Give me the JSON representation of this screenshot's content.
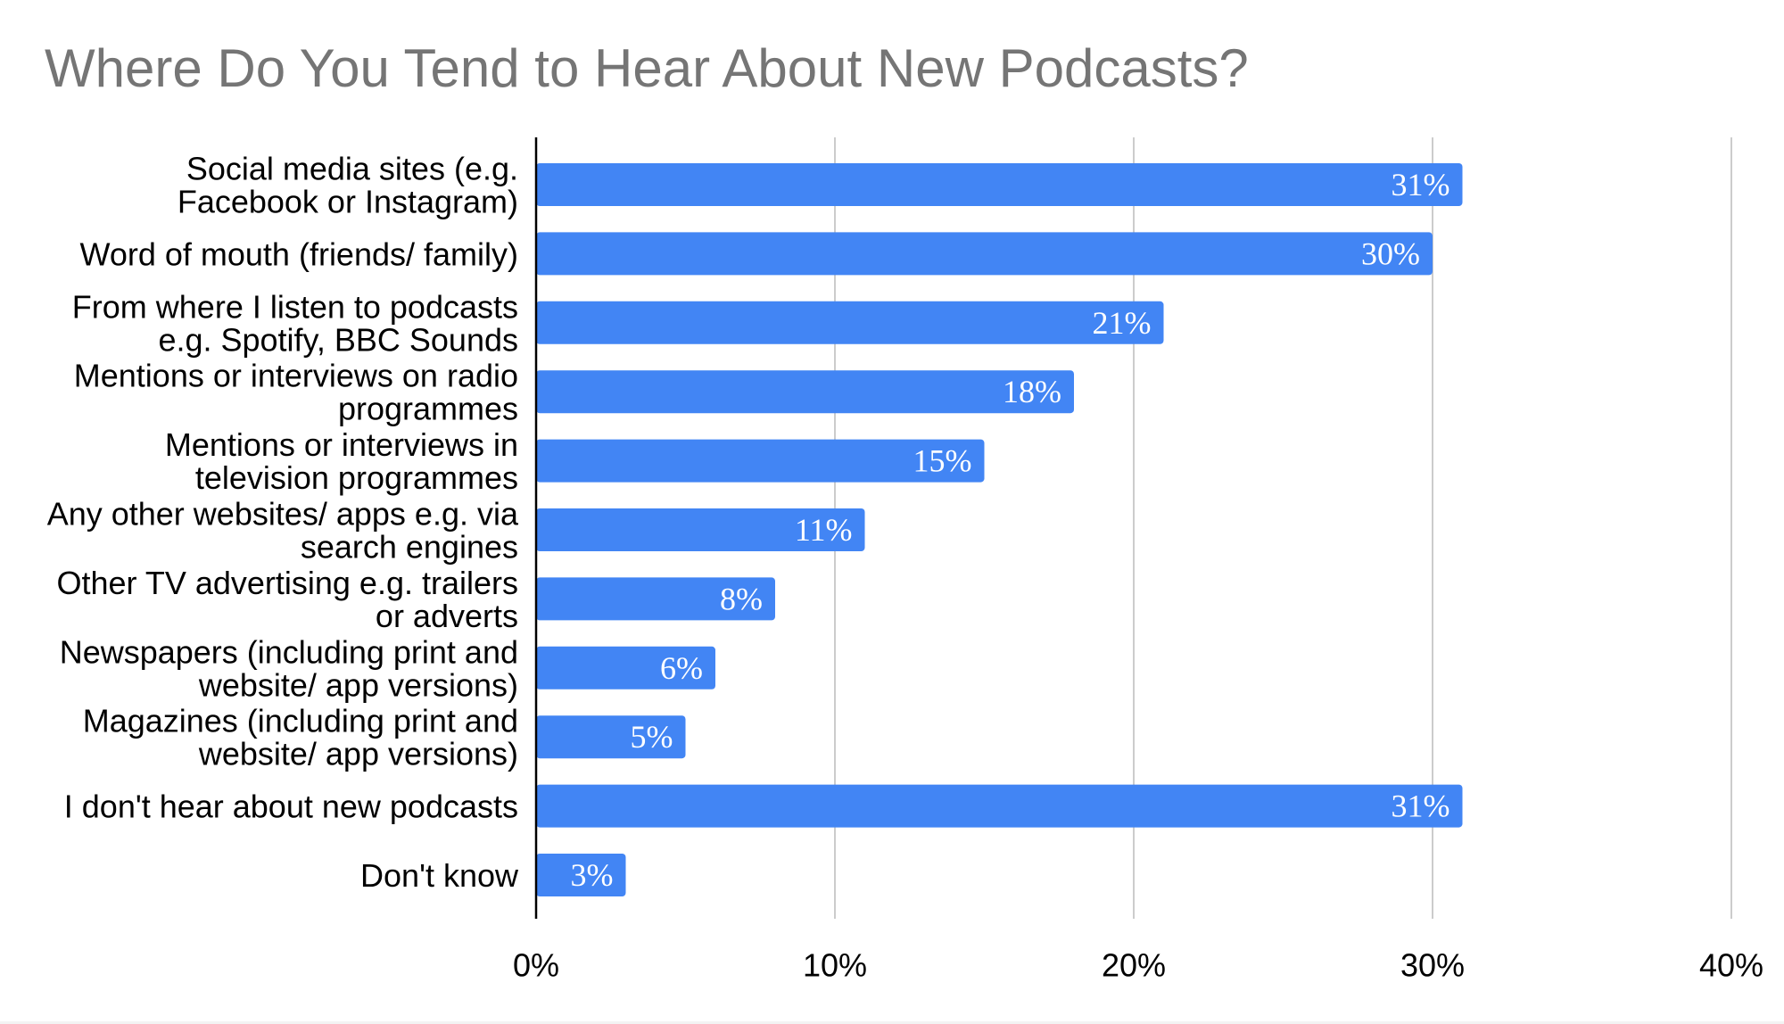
{
  "chart_data": {
    "type": "bar",
    "orientation": "horizontal",
    "title": "Where Do You Tend to Hear About New Podcasts?",
    "categories": [
      "Social media sites (e.g.\nFacebook or Instagram)",
      "Word of mouth (friends/ family)",
      "From where I listen to podcasts\ne.g. Spotify, BBC Sounds",
      "Mentions or interviews on radio\nprogrammes",
      "Mentions or interviews in\ntelevision programmes",
      "Any other websites/ apps e.g. via\nsearch engines",
      "Other TV advertising e.g. trailers\nor adverts",
      "Newspapers (including print and\nwebsite/ app versions)",
      "Magazines (including print and\nwebsite/ app versions)",
      "I don't hear about new podcasts",
      "Don't know"
    ],
    "values": [
      31,
      30,
      21,
      18,
      15,
      11,
      8,
      6,
      5,
      31,
      3
    ],
    "data_labels": [
      "31%",
      "30%",
      "21%",
      "18%",
      "15%",
      "11%",
      "8%",
      "6%",
      "5%",
      "31%",
      "3%"
    ],
    "xlim": [
      0,
      40
    ],
    "xticks": [
      0,
      10,
      20,
      30,
      40
    ],
    "xtick_labels": [
      "0%",
      "10%",
      "20%",
      "30%",
      "40%"
    ],
    "xlabel": "",
    "ylabel": "",
    "grid": "vertical",
    "legend": "none",
    "bar_color": "#4285f4",
    "grid_color": "#cccccc",
    "axis_color": "#000000",
    "title_color": "#757575",
    "data_label_color": "#ffffff"
  }
}
